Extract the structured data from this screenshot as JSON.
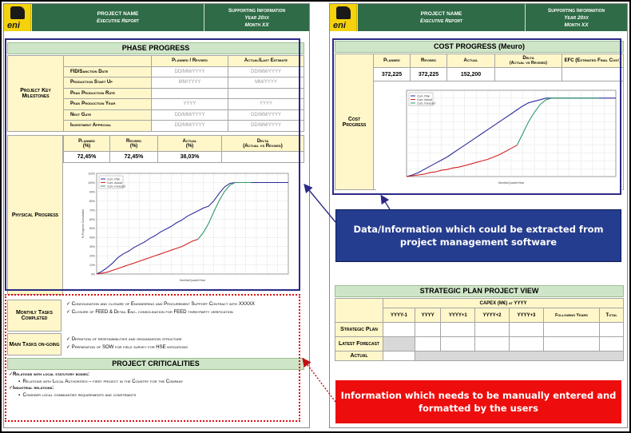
{
  "header": {
    "project_name": "PROJECT NAME",
    "executive_report": "Executive Report",
    "supporting_information": "Supporting Information",
    "year": "Year 20xx",
    "month": "Month XX",
    "logo_text": "eni"
  },
  "phase_progress": {
    "title": "PHASE PROGRESS",
    "milestones_label": "Project Key Milestones",
    "col_planned": "Planned / Revised",
    "col_actual": "Actual/Last Estimate",
    "rows": [
      {
        "label": "FID/Sanction Date",
        "planned": "DD/MM/YYYY",
        "actual": "DD/MM/YYYY"
      },
      {
        "label": "Production Start Up",
        "planned": "MM/YYYY",
        "actual": "MM/YYYY"
      },
      {
        "label": "Peak Production Rate",
        "planned": "",
        "actual": ""
      },
      {
        "label": "Peak Production Year",
        "planned": "YYYY",
        "actual": "YYYY"
      },
      {
        "label": "Next Gate",
        "planned": "DD/MM/YYYY",
        "actual": "DD/MM/YYYY"
      },
      {
        "label": "Investment Approval",
        "planned": "DD/MM/YYYY",
        "actual": "DD/MM/YYYY"
      }
    ],
    "physical_progress_label": "Physical Progress",
    "pct_headers": {
      "planned": "Planned",
      "revised": "Revised",
      "actual": "Actual",
      "delta": "Delta",
      "unit": "(%)",
      "delta_sub": "(Actual vs Revised)"
    },
    "pct_values": {
      "planned": "72,45%",
      "revised": "72,45%",
      "actual": "38,03%",
      "delta": ""
    }
  },
  "tasks": {
    "monthly_label": "Monthly Tasks Completed",
    "monthly_items": [
      "Consolidation and closure of Engineering and Procurement Support Contract with XXXXX",
      "Closure of FEED & Detail Eng. consolidation for FEED third-party verification"
    ],
    "main_label": "Main Tasks on-going",
    "main_items": [
      "Definition of responsibilities and organization structure",
      "Preparation of SOW for field survey for HSE mitigations"
    ]
  },
  "criticalities": {
    "title": "PROJECT CRITICALITIES",
    "heading1": "Relations with local statutory bodies:",
    "item1": "Relations with Local Authorities – first project in the Country for the Company",
    "heading2": "Industrial relations:",
    "item2": "Consider local communities requirements and constraints"
  },
  "cost_progress": {
    "title": "COST PROGRESS (Meuro)",
    "side_label": "Cost Progress",
    "headers": {
      "planned": "Planned",
      "revised": "Revised",
      "actual": "Actual",
      "delta": "Delta",
      "delta_sub": "(Actual vs Revised)",
      "efc": "EFC (Estimated Final Cost)"
    },
    "values": {
      "planned": "372,225",
      "revised": "372,225",
      "actual": "152,200",
      "delta": "",
      "efc": ""
    }
  },
  "strategic_plan": {
    "title": "STRATEGIC PLAN PROJECT VIEW",
    "capex_label": "CAPEX (M€) at YYYY",
    "columns": [
      "YYYY-1",
      "YYYY",
      "YYYY+1",
      "YYYY+2",
      "YYYY+3",
      "Following Years",
      "Total"
    ],
    "rows": [
      "Strategic Plan",
      "Latest Forecast",
      "Actual"
    ]
  },
  "callouts": {
    "blue": "Data/Information which could be extracted from project management software",
    "red": "Information which needs to be manually entered and formatted by the users"
  },
  "colors": {
    "header_green": "#2f6b46",
    "section_green": "#cfe5c8",
    "label_yellow": "#fff7c9",
    "highlight_blue": "#2a2a86",
    "highlight_red": "#e01010",
    "series_plan": "#2b2b9b",
    "series_actual": "#d42222",
    "series_forecast": "#2e9a6a"
  },
  "chart_data": [
    {
      "type": "line",
      "title": "",
      "xlabel": "Months/Quarter/Year",
      "ylabel": "% Progress Cumulative",
      "ylim": [
        0,
        110
      ],
      "yticks": [
        "0%",
        "10%",
        "20%",
        "30%",
        "40%",
        "50%",
        "60%",
        "70%",
        "80%",
        "90%",
        "100%",
        "110%"
      ],
      "legend": "top-left",
      "x": [
        0,
        1,
        2,
        3,
        4,
        5,
        6,
        7,
        8,
        9,
        10,
        11,
        12,
        13,
        14,
        15,
        16,
        17,
        18,
        19,
        20,
        21,
        22,
        23,
        24,
        25,
        26,
        27,
        28,
        29,
        30,
        31,
        32,
        33,
        34,
        35,
        36
      ],
      "series": [
        {
          "name": "Cum. Plan",
          "values": [
            0,
            3,
            7,
            12,
            18,
            22,
            25,
            29,
            32,
            35,
            39,
            42,
            46,
            49,
            52,
            56,
            59,
            63,
            66,
            69,
            72,
            74,
            80,
            88,
            95,
            99,
            100,
            100,
            100,
            100,
            100,
            100,
            100,
            100,
            100,
            100,
            100
          ]
        },
        {
          "name": "Cum. Actual",
          "values": [
            0,
            1,
            2,
            4,
            6,
            8,
            10,
            12,
            14,
            16,
            18,
            20,
            22,
            24,
            26,
            28,
            30,
            33,
            36,
            38,
            null,
            null,
            null,
            null,
            null,
            null,
            null,
            null,
            null,
            null,
            null,
            null,
            null,
            null,
            null,
            null,
            null
          ]
        },
        {
          "name": "Cum. Forecast",
          "values": [
            null,
            null,
            null,
            null,
            null,
            null,
            null,
            null,
            null,
            null,
            null,
            null,
            null,
            null,
            null,
            null,
            null,
            null,
            null,
            38,
            45,
            55,
            68,
            80,
            90,
            97,
            100,
            100,
            100,
            100,
            null,
            null,
            null,
            null,
            null,
            null,
            null
          ]
        }
      ]
    },
    {
      "type": "line",
      "title": "",
      "xlabel": "Months/Quarter/Year",
      "ylabel": "",
      "legend": "top-left",
      "x": [
        0,
        1,
        2,
        3,
        4,
        5,
        6,
        7,
        8,
        9,
        10,
        11,
        12,
        13,
        14,
        15,
        16,
        17,
        18,
        19,
        20,
        21,
        22,
        23,
        24,
        25,
        26,
        27,
        28,
        29,
        30,
        31,
        32,
        33,
        34,
        35,
        36
      ],
      "series": [
        {
          "name": "Cum. Plan",
          "values": [
            0,
            2,
            5,
            9,
            13,
            17,
            21,
            25,
            30,
            35,
            40,
            45,
            50,
            55,
            60,
            65,
            70,
            75,
            80,
            85,
            90,
            94,
            96,
            98,
            100,
            100,
            100,
            100,
            100,
            100,
            100,
            100,
            100,
            100,
            100,
            100,
            100
          ]
        },
        {
          "name": "Cum. Actual",
          "values": [
            0,
            1,
            2,
            3,
            5,
            6,
            8,
            9,
            11,
            12,
            14,
            16,
            18,
            20,
            22,
            25,
            28,
            32,
            36,
            40,
            null,
            null,
            null,
            null,
            null,
            null,
            null,
            null,
            null,
            null,
            null,
            null,
            null,
            null,
            null,
            null,
            null
          ]
        },
        {
          "name": "Cum. Forecast",
          "values": [
            null,
            null,
            null,
            null,
            null,
            null,
            null,
            null,
            null,
            null,
            null,
            null,
            null,
            null,
            null,
            null,
            null,
            null,
            null,
            40,
            55,
            70,
            82,
            92,
            98,
            100,
            100,
            100,
            100,
            100,
            100,
            100,
            100,
            100,
            null,
            null,
            null
          ]
        }
      ]
    }
  ]
}
